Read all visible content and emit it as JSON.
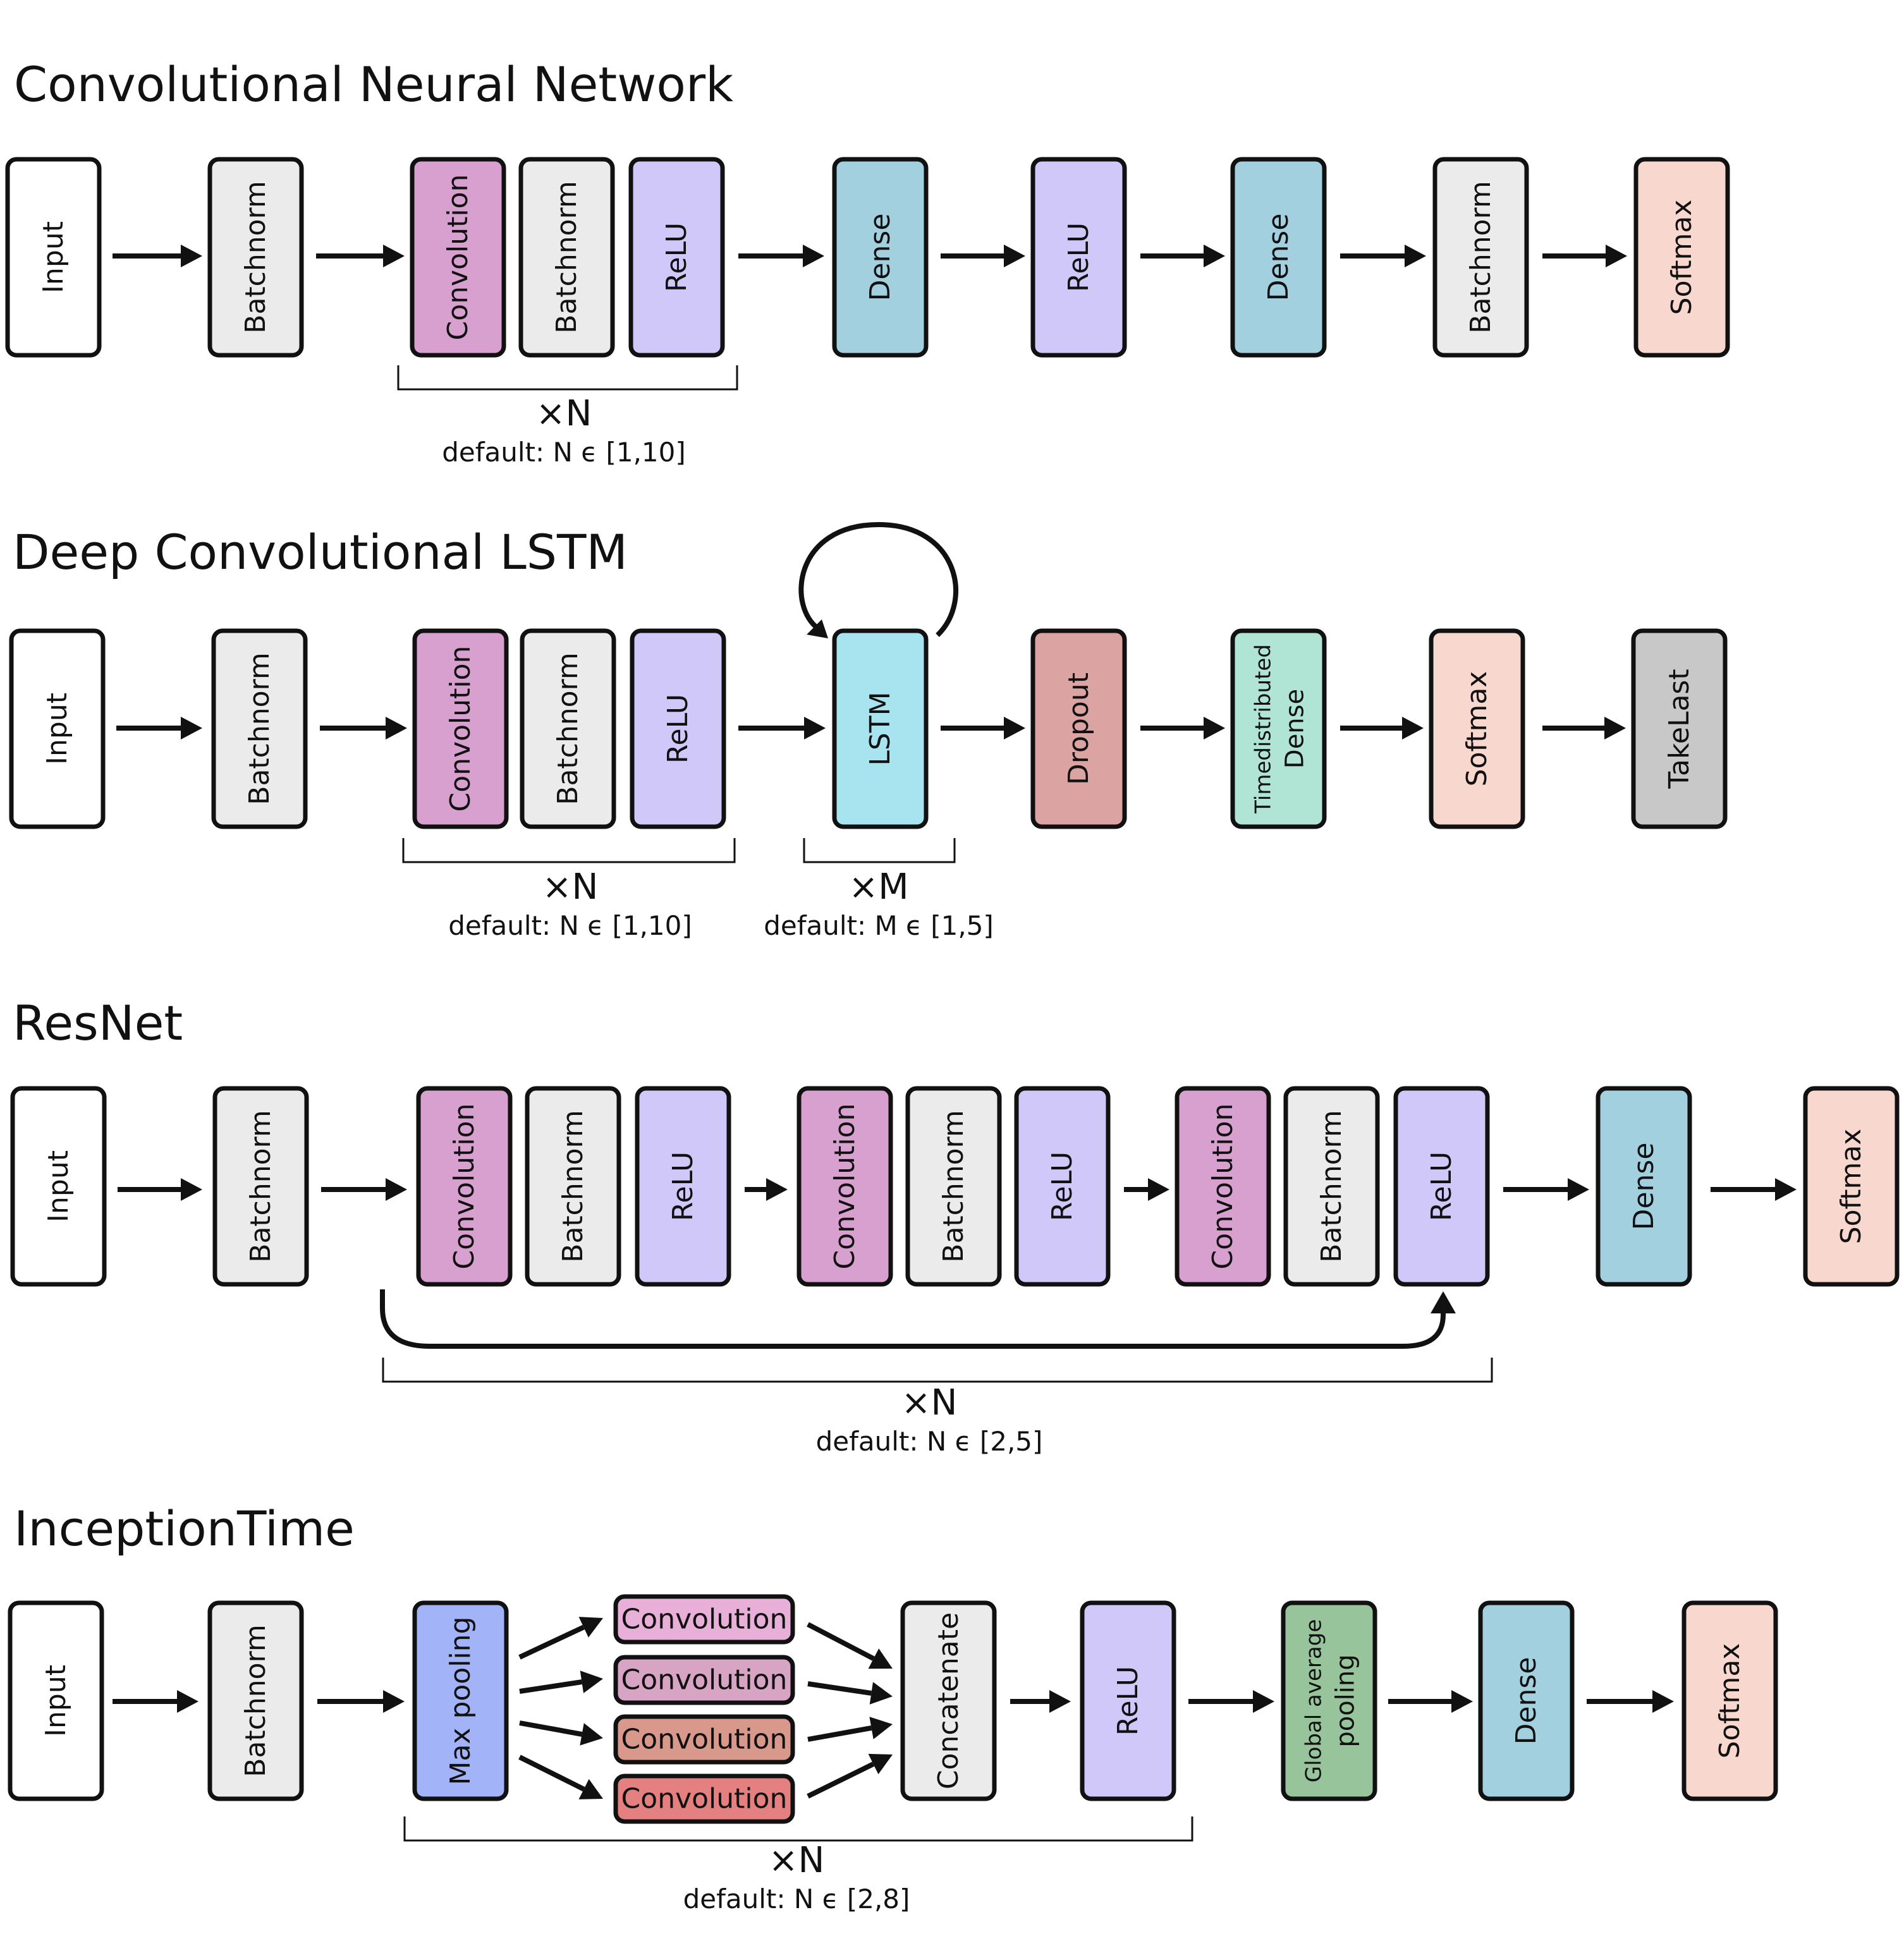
{
  "colors": {
    "input": "#ffffff",
    "batchnorm": "#ebebeb",
    "convolution": "#d8a0cf",
    "relu": "#d0c8f8",
    "dense": "#a3d0de",
    "softmax": "#f7d7ce",
    "lstm": "#a8e4f0",
    "dropout": "#dca3a3",
    "timedistributed": "#b0e4d4",
    "takelast": "#c8c8c8",
    "maxpool": "#a3b3f8",
    "concatenate": "#ebebeb",
    "gap": "#98c49c",
    "conv_a": "#e8b0d8",
    "conv_b": "#d8a4c4",
    "conv_c": "#d8988c",
    "conv_d": "#e48080"
  },
  "sections": [
    {
      "title": "Convolutional Neural Network",
      "blocks": [
        {
          "label": "Input",
          "color": "input"
        },
        {
          "label": "Batchnorm",
          "color": "batchnorm"
        },
        {
          "label": "Convolution",
          "color": "convolution"
        },
        {
          "label": "Batchnorm",
          "color": "batchnorm"
        },
        {
          "label": "ReLU",
          "color": "relu"
        },
        {
          "label": "Dense",
          "color": "dense"
        },
        {
          "label": "ReLU",
          "color": "relu"
        },
        {
          "label": "Dense",
          "color": "dense"
        },
        {
          "label": "Batchnorm",
          "color": "batchnorm"
        },
        {
          "label": "Softmax",
          "color": "softmax"
        }
      ],
      "repeats": [
        {
          "mult": "×N",
          "default": "default: N ϵ [1,10]"
        }
      ]
    },
    {
      "title": "Deep Convolutional LSTM",
      "blocks": [
        {
          "label": "Input",
          "color": "input"
        },
        {
          "label": "Batchnorm",
          "color": "batchnorm"
        },
        {
          "label": "Convolution",
          "color": "convolution"
        },
        {
          "label": "Batchnorm",
          "color": "batchnorm"
        },
        {
          "label": "ReLU",
          "color": "relu"
        },
        {
          "label": "LSTM",
          "color": "lstm"
        },
        {
          "label": "Dropout",
          "color": "dropout"
        },
        {
          "label": "Timedistributed",
          "label2": "Dense",
          "color": "timedistributed"
        },
        {
          "label": "Softmax",
          "color": "softmax"
        },
        {
          "label": "TakeLast",
          "color": "takelast"
        }
      ],
      "repeats": [
        {
          "mult": "×N",
          "default": "default: N ϵ [1,10]"
        },
        {
          "mult": "×M",
          "default": "default: M ϵ [1,5]"
        }
      ]
    },
    {
      "title": "ResNet",
      "blocks": [
        {
          "label": "Input",
          "color": "input"
        },
        {
          "label": "Batchnorm",
          "color": "batchnorm"
        },
        {
          "label": "Convolution",
          "color": "convolution"
        },
        {
          "label": "Batchnorm",
          "color": "batchnorm"
        },
        {
          "label": "ReLU",
          "color": "relu"
        },
        {
          "label": "Convolution",
          "color": "convolution"
        },
        {
          "label": "Batchnorm",
          "color": "batchnorm"
        },
        {
          "label": "ReLU",
          "color": "relu"
        },
        {
          "label": "Convolution",
          "color": "convolution"
        },
        {
          "label": "Batchnorm",
          "color": "batchnorm"
        },
        {
          "label": "ReLU",
          "color": "relu"
        },
        {
          "label": "Dense",
          "color": "dense"
        },
        {
          "label": "Softmax",
          "color": "softmax"
        }
      ],
      "repeats": [
        {
          "mult": "×N",
          "default": "default: N ϵ [2,5]"
        }
      ]
    },
    {
      "title": "InceptionTime",
      "blocks": [
        {
          "label": "Input",
          "color": "input"
        },
        {
          "label": "Batchnorm",
          "color": "batchnorm"
        },
        {
          "label": "Max pooling",
          "color": "maxpool"
        },
        {
          "label": "Convolution",
          "color": "conv_a"
        },
        {
          "label": "Convolution",
          "color": "conv_b"
        },
        {
          "label": "Convolution",
          "color": "conv_c"
        },
        {
          "label": "Convolution",
          "color": "conv_d"
        },
        {
          "label": "Concatenate",
          "color": "concatenate"
        },
        {
          "label": "ReLU",
          "color": "relu"
        },
        {
          "label": "Global average",
          "label2": "pooling",
          "color": "gap"
        },
        {
          "label": "Dense",
          "color": "dense"
        },
        {
          "label": "Softmax",
          "color": "softmax"
        }
      ],
      "repeats": [
        {
          "mult": "×N",
          "default": "default: N ϵ [2,8]"
        }
      ]
    }
  ]
}
